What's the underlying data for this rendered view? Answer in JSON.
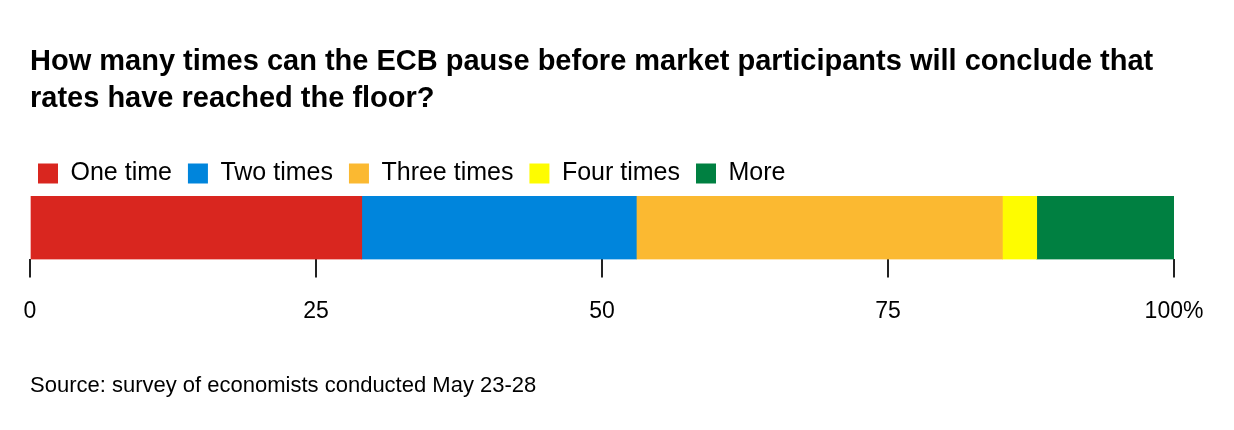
{
  "chart_data": {
    "type": "bar",
    "orientation": "horizontal",
    "stacked": true,
    "title": "How many times can the ECB pause before market participants will conclude that rates have reached the floor?",
    "categories": [
      null
    ],
    "series": [
      {
        "name": "One time",
        "color": "#d9261f",
        "values": [
          29
        ]
      },
      {
        "name": "Two times",
        "color": "#0085dc",
        "values": [
          24
        ]
      },
      {
        "name": "Three times",
        "color": "#fbb931",
        "values": [
          32
        ]
      },
      {
        "name": "Four times",
        "color": "#fefc00",
        "values": [
          3
        ]
      },
      {
        "name": "More",
        "color": "#008041",
        "values": [
          12
        ]
      }
    ],
    "xlim": [
      0,
      100
    ],
    "xticks": [
      0,
      25,
      50,
      75,
      {
        "value": 100,
        "label": "100%"
      }
    ],
    "grid": false,
    "legend": "top left",
    "annotations": [
      "Source: survey of economists conducted May 23-28"
    ]
  }
}
